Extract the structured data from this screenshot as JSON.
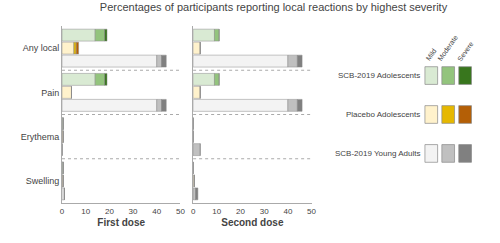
{
  "chart_data": {
    "type": "bar",
    "orientation": "horizontal",
    "stacked": true,
    "grid": false,
    "title": "Percentages of participants reporting local reactions by highest severity",
    "categories": [
      "Any local",
      "Pain",
      "Erythema",
      "Swelling"
    ],
    "xlim": [
      0,
      50
    ],
    "xticks": [
      0,
      10,
      20,
      30,
      40,
      50
    ],
    "panels": [
      {
        "xlabel": "First dose",
        "series": [
          {
            "name": "SCB-2019 Adolescents",
            "segments": [
              {
                "name": "Mild",
                "color": "#d9ead3",
                "values": [
                  14,
                  14,
                  0.5,
                  0.5
                ]
              },
              {
                "name": "Moderate",
                "color": "#93c47d",
                "values": [
                  4,
                  4,
                  0,
                  0
                ]
              },
              {
                "name": "Severe",
                "color": "#38761d",
                "values": [
                  1,
                  1,
                  0,
                  0
                ]
              }
            ]
          },
          {
            "name": "Placebo Adolescents",
            "segments": [
              {
                "name": "Mild",
                "color": "#fff2cc",
                "values": [
                  5,
                  4,
                  0.5,
                  0.5
                ]
              },
              {
                "name": "Moderate",
                "color": "#e6b800",
                "values": [
                  1,
                  0,
                  0,
                  0
                ]
              },
              {
                "name": "Severe",
                "color": "#b45f06",
                "values": [
                  1,
                  0,
                  0,
                  0
                ]
              }
            ]
          },
          {
            "name": "SCB-2019 Young Adults",
            "segments": [
              {
                "name": "Mild",
                "color": "#f3f3f3",
                "values": [
                  40,
                  40,
                  0,
                  1
                ]
              },
              {
                "name": "Moderate",
                "color": "#c0c0c0",
                "values": [
                  2,
                  2,
                  0,
                  0
                ]
              },
              {
                "name": "Severe",
                "color": "#808080",
                "values": [
                  2,
                  2,
                  0,
                  0
                ]
              }
            ]
          }
        ]
      },
      {
        "xlabel": "Second dose",
        "series": [
          {
            "name": "SCB-2019 Adolescents",
            "segments": [
              {
                "name": "Mild",
                "color": "#d9ead3",
                "values": [
                  9,
                  9,
                  0,
                  0
                ]
              },
              {
                "name": "Moderate",
                "color": "#93c47d",
                "values": [
                  2,
                  2,
                  0,
                  0
                ]
              },
              {
                "name": "Severe",
                "color": "#38761d",
                "values": [
                  0,
                  0,
                  0,
                  0
                ]
              }
            ]
          },
          {
            "name": "Placebo Adolescents",
            "segments": [
              {
                "name": "Mild",
                "color": "#fff2cc",
                "values": [
                  3,
                  3,
                  0,
                  0.5
                ]
              },
              {
                "name": "Moderate",
                "color": "#e6b800",
                "values": [
                  0,
                  0,
                  0,
                  0
                ]
              },
              {
                "name": "Severe",
                "color": "#b45f06",
                "values": [
                  0,
                  0,
                  0,
                  0
                ]
              }
            ]
          },
          {
            "name": "SCB-2019 Young Adults",
            "segments": [
              {
                "name": "Mild",
                "color": "#f3f3f3",
                "values": [
                  40,
                  40,
                  0,
                  0
                ]
              },
              {
                "name": "Moderate",
                "color": "#c0c0c0",
                "values": [
                  4,
                  4,
                  3,
                  1
                ]
              },
              {
                "name": "Severe",
                "color": "#808080",
                "values": [
                  2,
                  2,
                  0,
                  1
                ]
              }
            ]
          }
        ]
      }
    ]
  }
}
